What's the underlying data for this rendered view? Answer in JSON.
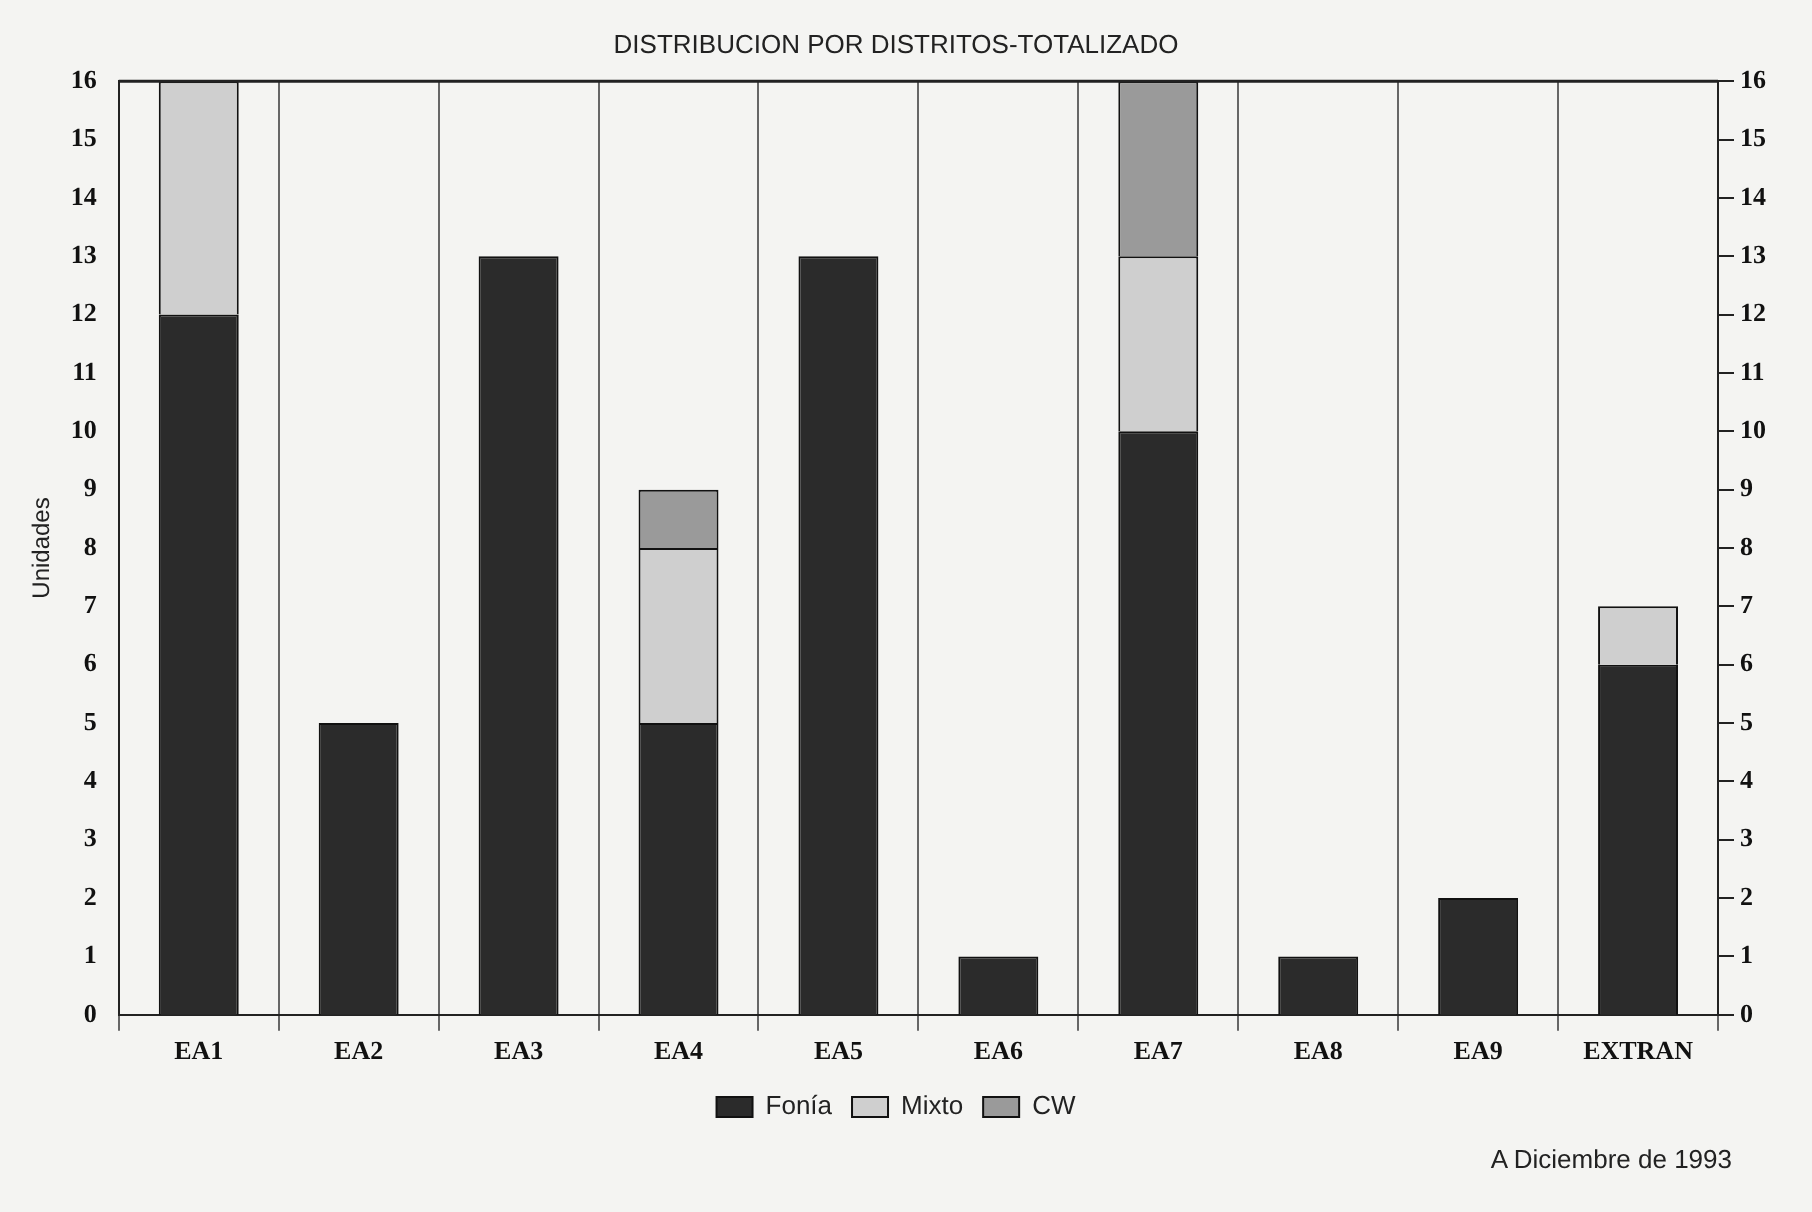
{
  "chart_data": {
    "type": "bar",
    "title": "DISTRIBUCION POR DISTRITOS-TOTALIZADO",
    "ylabel": "Unidades",
    "categories": [
      "EA1",
      "EA2",
      "EA3",
      "EA4",
      "EA5",
      "EA6",
      "EA7",
      "EA8",
      "EA9",
      "EXTRAN"
    ],
    "series": [
      {
        "name": "Fonía",
        "color": "#2b2b2b",
        "values": [
          12,
          5,
          13,
          5,
          13,
          1,
          10,
          1,
          2,
          6
        ]
      },
      {
        "name": "Mixto",
        "color": "#cfcfcf",
        "values": [
          4,
          0,
          0,
          3,
          0,
          0,
          3,
          0,
          0,
          1
        ]
      },
      {
        "name": "CW",
        "color": "#9a9a9a",
        "values": [
          0,
          0,
          0,
          1,
          0,
          0,
          3,
          0,
          0,
          0
        ]
      }
    ],
    "stacked": true,
    "ylim": [
      0,
      16
    ],
    "yticks": [
      0,
      1,
      2,
      3,
      4,
      5,
      6,
      7,
      8,
      9,
      10,
      11,
      12,
      13,
      14,
      15,
      16
    ],
    "y2lim": [
      0,
      16
    ],
    "y2ticks": [
      0,
      1,
      2,
      3,
      4,
      5,
      6,
      7,
      8,
      9,
      10,
      11,
      12,
      13,
      14,
      15,
      16
    ],
    "grid": "x",
    "legend": "bottom",
    "annotations": [
      "A Diciembre de 1993"
    ]
  }
}
